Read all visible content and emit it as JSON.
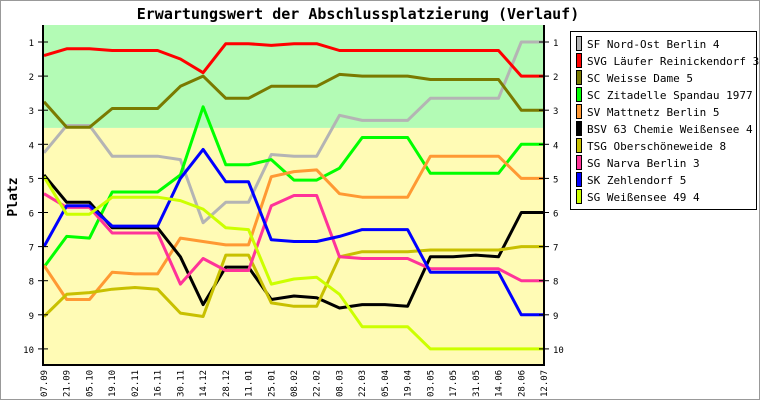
{
  "chart_data": {
    "type": "line",
    "title": "Erwartungswert der Abschlussplatzierung (Verlauf)",
    "ylabel": "Platz",
    "xlabel": "",
    "ylim": [
      1,
      10
    ],
    "y_inverted": true,
    "y_ticks": [
      "1",
      "2",
      "3",
      "4",
      "5",
      "6",
      "7",
      "8",
      "9",
      "10"
    ],
    "grid": false,
    "legend_position": "right",
    "zones": [
      {
        "from": 0.5,
        "to": 3.52,
        "color": "#b3fbb5"
      },
      {
        "from": 3.52,
        "to": 10.5,
        "color": "#fffbb5"
      }
    ],
    "categories": [
      "07.09",
      "21.09",
      "05.10",
      "19.10",
      "02.11",
      "16.11",
      "30.11",
      "14.12",
      "28.12",
      "11.01",
      "25.01",
      "08.02",
      "22.02",
      "08.03",
      "22.03",
      "05.04",
      "19.04",
      "03.05",
      "17.05",
      "31.05",
      "14.06",
      "28.06",
      "12.07"
    ],
    "series": [
      {
        "name": "SF Nord-Ost Berlin 4",
        "color": "#b4b4b4",
        "values": [
          4.25,
          3.45,
          3.45,
          4.35,
          4.35,
          4.35,
          4.45,
          6.3,
          5.7,
          5.7,
          4.3,
          4.35,
          4.35,
          3.15,
          3.3,
          3.3,
          3.3,
          2.65,
          2.65,
          2.65,
          2.65,
          1.0,
          1.0
        ]
      },
      {
        "name": "SVG Läufer Reinickendorf 3",
        "color": "#ff0000",
        "values": [
          1.4,
          1.2,
          1.2,
          1.25,
          1.25,
          1.25,
          1.5,
          1.9,
          1.05,
          1.05,
          1.1,
          1.05,
          1.05,
          1.25,
          1.25,
          1.25,
          1.25,
          1.25,
          1.25,
          1.25,
          1.25,
          2.0,
          2.0
        ]
      },
      {
        "name": "SC Weisse Dame 5",
        "color": "#7a7a00",
        "values": [
          2.75,
          3.5,
          3.5,
          2.95,
          2.95,
          2.95,
          2.3,
          2.0,
          2.65,
          2.65,
          2.3,
          2.3,
          2.3,
          1.95,
          2.0,
          2.0,
          2.0,
          2.1,
          2.1,
          2.1,
          2.1,
          3.0,
          3.0
        ]
      },
      {
        "name": "SC Zitadelle Spandau 1977 4",
        "color": "#00ff00",
        "values": [
          7.6,
          6.7,
          6.75,
          5.4,
          5.4,
          5.4,
          4.9,
          2.9,
          4.6,
          4.6,
          4.45,
          5.05,
          5.05,
          4.7,
          3.8,
          3.8,
          3.8,
          4.85,
          4.85,
          4.85,
          4.85,
          4.0,
          4.0
        ]
      },
      {
        "name": "SV Mattnetz Berlin 5",
        "color": "#ff9933",
        "values": [
          7.55,
          8.55,
          8.55,
          7.75,
          7.8,
          7.8,
          6.75,
          6.85,
          6.95,
          6.95,
          4.95,
          4.8,
          4.75,
          5.45,
          5.55,
          5.55,
          5.55,
          4.35,
          4.35,
          4.35,
          4.35,
          5.0,
          5.0
        ]
      },
      {
        "name": "BSV 63 Chemie Weißensee 4",
        "color": "#000000",
        "values": [
          4.9,
          5.7,
          5.7,
          6.45,
          6.45,
          6.45,
          7.3,
          8.7,
          7.6,
          7.6,
          8.55,
          8.45,
          8.5,
          8.8,
          8.7,
          8.7,
          8.75,
          7.3,
          7.3,
          7.25,
          7.3,
          6.0,
          6.0
        ]
      },
      {
        "name": "TSG Oberschöneweide 8",
        "color": "#c8c000",
        "values": [
          9.05,
          8.4,
          8.35,
          8.25,
          8.2,
          8.25,
          8.95,
          9.05,
          7.25,
          7.25,
          8.65,
          8.75,
          8.75,
          7.3,
          7.15,
          7.15,
          7.15,
          7.1,
          7.1,
          7.1,
          7.1,
          7.0,
          7.0
        ]
      },
      {
        "name": "SG Narva Berlin 3",
        "color": "#ff3399",
        "values": [
          5.45,
          5.85,
          5.85,
          6.6,
          6.6,
          6.6,
          8.1,
          7.35,
          7.7,
          7.7,
          5.8,
          5.5,
          5.5,
          7.3,
          7.35,
          7.35,
          7.35,
          7.65,
          7.65,
          7.65,
          7.65,
          8.0,
          8.0
        ]
      },
      {
        "name": "SK Zehlendorf 5",
        "color": "#0000ff",
        "values": [
          7.0,
          5.8,
          5.8,
          6.4,
          6.4,
          6.4,
          5.0,
          4.15,
          5.1,
          5.1,
          6.8,
          6.85,
          6.85,
          6.7,
          6.5,
          6.5,
          6.5,
          7.75,
          7.75,
          7.75,
          7.75,
          9.0,
          9.0
        ]
      },
      {
        "name": "SG Weißensee 49 4",
        "color": "#ccff00",
        "values": [
          4.95,
          6.05,
          6.05,
          5.55,
          5.55,
          5.55,
          5.65,
          5.9,
          6.45,
          6.5,
          8.1,
          7.95,
          7.9,
          8.4,
          9.35,
          9.35,
          9.35,
          10,
          10,
          10,
          10,
          10,
          10
        ]
      }
    ]
  }
}
